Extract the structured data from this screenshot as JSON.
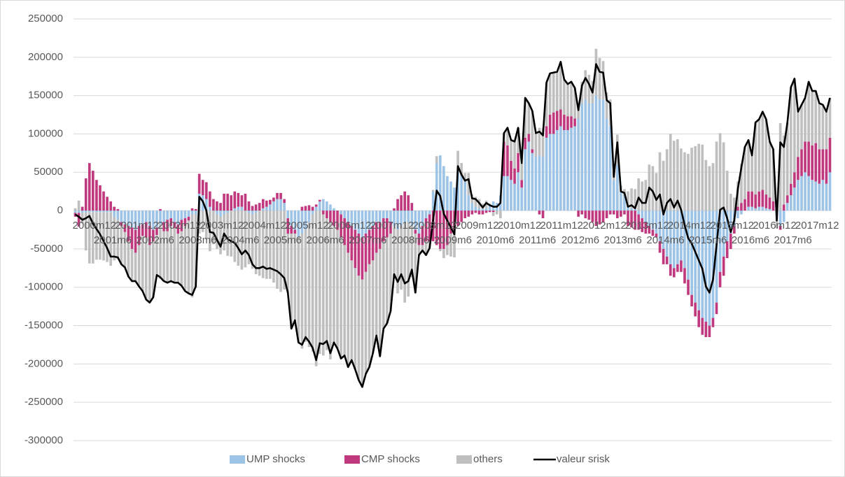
{
  "chart_data": {
    "type": "bar",
    "stacked": true,
    "grid": true,
    "ylim": [
      -300000,
      250000
    ],
    "yticks": [
      250000,
      200000,
      150000,
      100000,
      50000,
      0,
      -50000,
      -100000,
      -150000,
      -200000,
      -250000,
      -300000
    ],
    "categories": [
      "2000m12",
      null,
      null,
      null,
      null,
      null,
      "2001m6",
      null,
      null,
      null,
      null,
      null,
      "2001m12",
      null,
      null,
      null,
      null,
      null,
      "2002m6",
      null,
      null,
      null,
      null,
      null,
      "2002m12",
      null,
      null,
      null,
      null,
      null,
      "2003m6",
      null,
      null,
      null,
      null,
      null,
      "2003m12",
      null,
      null,
      null,
      null,
      null,
      "2004m6",
      null,
      null,
      null,
      null,
      null,
      "2004m12",
      null,
      null,
      null,
      null,
      null,
      "2005m6",
      null,
      null,
      null,
      null,
      null,
      "2005m12",
      null,
      null,
      null,
      null,
      null,
      "2006m6",
      null,
      null,
      null,
      null,
      null,
      "2006m12",
      null,
      null,
      null,
      null,
      null,
      "2007m6",
      null,
      null,
      null,
      null,
      null,
      "2007m12",
      null,
      null,
      null,
      null,
      null,
      "2008m6",
      null,
      null,
      null,
      null,
      null,
      "2008m12",
      null,
      null,
      null,
      null,
      null,
      "2009m6",
      null,
      null,
      null,
      null,
      null,
      "2009m12",
      null,
      null,
      null,
      null,
      null,
      "2010m6",
      null,
      null,
      null,
      null,
      null,
      "2010m12",
      null,
      null,
      null,
      null,
      null,
      "2011m6",
      null,
      null,
      null,
      null,
      null,
      "2011m12",
      null,
      null,
      null,
      null,
      null,
      "2012m6",
      null,
      null,
      null,
      null,
      null,
      "2012m12",
      null,
      null,
      null,
      null,
      null,
      "2013m6",
      null,
      null,
      null,
      null,
      null,
      "2013m12",
      null,
      null,
      null,
      null,
      null,
      "2014m6",
      null,
      null,
      null,
      null,
      null,
      "2014m12",
      null,
      null,
      null,
      null,
      null,
      "2015m6",
      null,
      null,
      null,
      null,
      null,
      "2015m12",
      null,
      null,
      null,
      null,
      null,
      "2016m6",
      null,
      null,
      null,
      null,
      null,
      "2016m12",
      null,
      null,
      null,
      null,
      null,
      "2017m6",
      null,
      null,
      null,
      null,
      null,
      "2017m12",
      null,
      null,
      null,
      null,
      null,
      null,
      null,
      null,
      null
    ],
    "series": [
      {
        "name": "UMP shocks",
        "color": "#9dc3e6",
        "values": [
          -3000,
          -3000,
          -3000,
          -3000,
          -2000,
          -2000,
          -2000,
          -2000,
          -2000,
          -2000,
          -2000,
          -8000,
          -12000,
          -15000,
          -18000,
          -20000,
          -22000,
          -25000,
          -20000,
          -18000,
          -15000,
          -20000,
          -25000,
          -22000,
          -18000,
          -15000,
          -12000,
          -10000,
          -15000,
          -18000,
          -12000,
          -10000,
          -8000,
          -5000,
          -5000,
          22000,
          20000,
          15000,
          5000,
          0,
          -5000,
          -8000,
          -5000,
          -3000,
          0,
          3000,
          5000,
          5000,
          0,
          -3000,
          -5000,
          -3000,
          0,
          3000,
          5000,
          8000,
          12000,
          15000,
          15000,
          10000,
          -10000,
          -20000,
          -25000,
          -35000,
          -30000,
          -25000,
          -15000,
          -5000,
          5000,
          12000,
          15000,
          12000,
          8000,
          3000,
          0,
          -5000,
          -10000,
          -15000,
          -20000,
          -25000,
          -30000,
          -35000,
          -30000,
          -25000,
          -20000,
          -15000,
          -15000,
          -10000,
          -10000,
          -15000,
          -20000,
          -25000,
          -20000,
          -15000,
          -15000,
          -20000,
          -25000,
          -30000,
          -20000,
          -10000,
          -5000,
          25000,
          62000,
          72000,
          58000,
          45000,
          38000,
          30000,
          50000,
          45000,
          38000,
          20000,
          10000,
          5000,
          3000,
          2000,
          3000,
          8000,
          12000,
          10000,
          20000,
          45000,
          45000,
          40000,
          35000,
          50000,
          30000,
          80000,
          90000,
          75000,
          70000,
          72000,
          70000,
          95000,
          100000,
          100000,
          105000,
          110000,
          105000,
          105000,
          108000,
          110000,
          120000,
          140000,
          145000,
          140000,
          140000,
          150000,
          145000,
          145000,
          120000,
          110000,
          40000,
          60000,
          25000,
          20000,
          5000,
          3000,
          2000,
          -5000,
          -10000,
          -15000,
          -20000,
          -25000,
          -30000,
          -40000,
          -50000,
          -60000,
          -70000,
          -75000,
          -70000,
          -65000,
          -75000,
          -90000,
          -110000,
          -120000,
          -130000,
          -140000,
          -145000,
          -150000,
          -140000,
          -120000,
          -80000,
          -60000,
          -40000,
          -30000,
          -20000,
          -10000,
          -5000,
          0,
          5000,
          5000,
          3000,
          5000,
          5000,
          3000,
          2000,
          0,
          -10000,
          -20000,
          -15000,
          10000,
          20000,
          30000,
          40000,
          45000,
          50000,
          45000,
          40000,
          38000,
          35000,
          40000,
          35000,
          50000
        ]
      },
      {
        "name": "CMP shocks",
        "color": "#c0397f",
        "values": [
          -5000,
          -18000,
          5000,
          42000,
          62000,
          52000,
          40000,
          33000,
          25000,
          18000,
          12000,
          5000,
          2000,
          -5000,
          -10000,
          -20000,
          -28000,
          -30000,
          -25000,
          -15000,
          -20000,
          -25000,
          -15000,
          -10000,
          2000,
          -12000,
          -15000,
          -10000,
          -8000,
          -12000,
          -15000,
          -10000,
          -5000,
          3000,
          2000,
          26000,
          20000,
          22000,
          20000,
          15000,
          12000,
          10000,
          22000,
          22000,
          20000,
          22000,
          18000,
          15000,
          22000,
          12000,
          6000,
          8000,
          10000,
          12000,
          8000,
          6000,
          5000,
          8000,
          8000,
          5000,
          -20000,
          -10000,
          -5000,
          0,
          5000,
          6000,
          7000,
          5000,
          3000,
          2000,
          -5000,
          -10000,
          -15000,
          -20000,
          -25000,
          -30000,
          -35000,
          -40000,
          -45000,
          -50000,
          -55000,
          -55000,
          -50000,
          -45000,
          -45000,
          -40000,
          -35000,
          -30000,
          -25000,
          -15000,
          3000,
          15000,
          20000,
          25000,
          20000,
          10000,
          -5000,
          -15000,
          -25000,
          -30000,
          -35000,
          -40000,
          -45000,
          -50000,
          -50000,
          -45000,
          -30000,
          -25000,
          -20000,
          -15000,
          -10000,
          -8000,
          -5000,
          -3000,
          -5000,
          -5000,
          -3000,
          -2000,
          -2000,
          0,
          0,
          45000,
          40000,
          25000,
          20000,
          25000,
          10000,
          15000,
          10000,
          5000,
          0,
          -5000,
          -10000,
          15000,
          25000,
          28000,
          25000,
          22000,
          20000,
          18000,
          15000,
          10000,
          -8000,
          -5000,
          -10000,
          -12000,
          -15000,
          -20000,
          -18000,
          -15000,
          -10000,
          -5000,
          -5000,
          -10000,
          -8000,
          -5000,
          -20000,
          -22000,
          -25000,
          -20000,
          -18000,
          -15000,
          -10000,
          -8000,
          -5000,
          -15000,
          -20000,
          -10000,
          -15000,
          -12000,
          -10000,
          -15000,
          -20000,
          -20000,
          -15000,
          -18000,
          -22000,
          -22000,
          -20000,
          -15000,
          -12000,
          -15000,
          -20000,
          -25000,
          -22000,
          -20000,
          -10000,
          5000,
          10000,
          15000,
          20000,
          20000,
          18000,
          20000,
          22000,
          18000,
          15000,
          12000,
          10000,
          -5000,
          8000,
          10000,
          15000,
          20000,
          30000,
          35000,
          40000,
          45000,
          45000,
          50000,
          45000,
          40000,
          45000,
          45000
        ]
      },
      {
        "name": "others",
        "color": "#bfbfbf",
        "values": [
          3000,
          13000,
          -14000,
          -49000,
          -67000,
          -67000,
          -62000,
          -62000,
          -63000,
          -65000,
          -70000,
          -57000,
          -51000,
          -50000,
          -46000,
          -46000,
          -42000,
          -37000,
          -54000,
          -72000,
          -81000,
          -75000,
          -73000,
          -52000,
          -71000,
          -65000,
          -67000,
          -72000,
          -71000,
          -64000,
          -71000,
          -85000,
          -95000,
          -108000,
          -96000,
          -30000,
          -28000,
          -37000,
          -53000,
          -44000,
          -45000,
          -49000,
          -47000,
          -56000,
          -60000,
          -67000,
          -72000,
          -77000,
          -74000,
          -67000,
          -71000,
          -80000,
          -85000,
          -88000,
          -89000,
          -89000,
          -94000,
          -102000,
          -106000,
          -103000,
          -77000,
          -124000,
          -113000,
          -137000,
          -150000,
          -146000,
          -163000,
          -179000,
          -203000,
          -187000,
          -184000,
          -172000,
          -179000,
          -155000,
          -155000,
          -158000,
          -144000,
          -149000,
          -130000,
          -132000,
          -136000,
          -140000,
          -133000,
          -134000,
          -121000,
          -108000,
          -140000,
          -114000,
          -112000,
          -101000,
          -66000,
          -83000,
          -83000,
          -105000,
          -97000,
          -67000,
          -77000,
          -13000,
          -7000,
          -18000,
          -9000,
          2000,
          9000,
          -3000,
          -12000,
          -13000,
          -30000,
          -36000,
          28000,
          17000,
          11000,
          29000,
          11000,
          13000,
          12000,
          7000,
          10000,
          1000,
          -5000,
          -5000,
          -10000,
          11000,
          23000,
          27000,
          35000,
          33000,
          22000,
          52000,
          40000,
          50000,
          31000,
          36000,
          38000,
          57000,
          54000,
          52000,
          51000,
          62000,
          46000,
          42000,
          45000,
          40000,
          19000,
          28000,
          38000,
          37000,
          29000,
          61000,
          54000,
          50000,
          34000,
          35000,
          9000,
          39000,
          8000,
          8000,
          20000,
          26000,
          26000,
          42000,
          38000,
          40000,
          60000,
          58000,
          49000,
          76000,
          65000,
          80000,
          100000,
          91000,
          93000,
          81000,
          76000,
          74000,
          82000,
          84000,
          87000,
          86000,
          66000,
          58000,
          62000,
          90000,
          101000,
          89000,
          52000,
          22000,
          17000,
          33000,
          51000,
          68000,
          67000,
          47000,
          94000,
          94000,
          102000,
          98000,
          73000,
          68000,
          -13000,
          114000,
          90000,
          95000,
          126000,
          122000,
          59000,
          58000,
          57000,
          78000,
          71000,
          68000,
          60000,
          58000,
          49000,
          52000
        ]
      },
      {
        "name": "valeur srisk",
        "type": "line",
        "color": "#000000",
        "values": [
          -5000,
          -8000,
          -12000,
          -10000,
          -7000,
          -17000,
          -24000,
          -31000,
          -40000,
          -49000,
          -60000,
          -60000,
          -61000,
          -70000,
          -74000,
          -86000,
          -92000,
          -92000,
          -99000,
          -105000,
          -116000,
          -120000,
          -113000,
          -84000,
          -87000,
          -92000,
          -94000,
          -92000,
          -94000,
          -94000,
          -98000,
          -105000,
          -108000,
          -110000,
          -99000,
          18000,
          12000,
          0,
          -28000,
          -29000,
          -38000,
          -47000,
          -30000,
          -37000,
          -40000,
          -42000,
          -49000,
          -57000,
          -52000,
          -58000,
          -70000,
          -75000,
          -75000,
          -73000,
          -76000,
          -75000,
          -77000,
          -79000,
          -83000,
          -88000,
          -107000,
          -154000,
          -143000,
          -172000,
          -175000,
          -165000,
          -171000,
          -179000,
          -195000,
          -173000,
          -174000,
          -170000,
          -186000,
          -172000,
          -180000,
          -193000,
          -189000,
          -204000,
          -195000,
          -207000,
          -221000,
          -230000,
          -213000,
          -204000,
          -186000,
          -163000,
          -190000,
          -154000,
          -147000,
          -131000,
          -83000,
          -93000,
          -83000,
          -95000,
          -92000,
          -77000,
          -107000,
          -58000,
          -52000,
          -58000,
          -49000,
          -13000,
          26000,
          19000,
          -4000,
          -13000,
          -22000,
          -31000,
          58000,
          47000,
          39000,
          41000,
          16000,
          15000,
          10000,
          4000,
          10000,
          7000,
          5000,
          5000,
          10000,
          101000,
          108000,
          92000,
          90000,
          108000,
          62000,
          147000,
          140000,
          130000,
          101000,
          103000,
          98000,
          167000,
          179000,
          180000,
          181000,
          194000,
          171000,
          165000,
          168000,
          160000,
          131000,
          163000,
          173000,
          165000,
          154000,
          191000,
          181000,
          180000,
          144000,
          140000,
          44000,
          89000,
          25000,
          23000,
          5000,
          7000,
          3000,
          17000,
          10000,
          10000,
          30000,
          25000,
          14000,
          21000,
          -5000,
          10000,
          15000,
          4000,
          13000,
          1000,
          -19000,
          -36000,
          -43000,
          -54000,
          -65000,
          -76000,
          -99000,
          -107000,
          -90000,
          -45000,
          1000,
          4000,
          -10000,
          -28000,
          -13000,
          28000,
          56000,
          83000,
          92000,
          72000,
          115000,
          119000,
          129000,
          119000,
          90000,
          80000,
          -13000,
          89000,
          83000,
          115000,
          161000,
          172000,
          129000,
          138000,
          147000,
          168000,
          156000,
          156000,
          140000,
          138000,
          129000,
          147000
        ]
      }
    ]
  }
}
